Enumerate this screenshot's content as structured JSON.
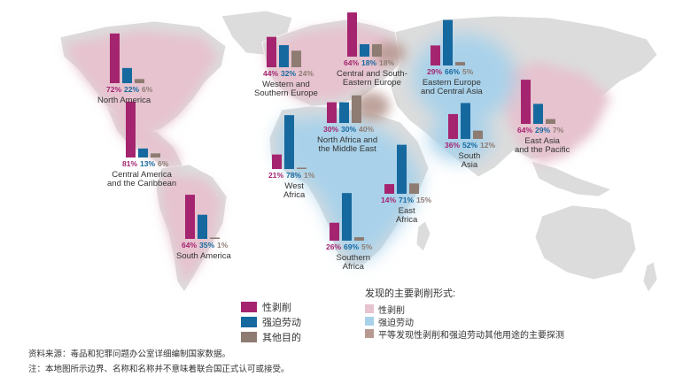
{
  "legend_bars": {
    "items": [
      {
        "label": "性剥削",
        "color": "#a5246f"
      },
      {
        "label": "强迫劳动",
        "color": "#16699f"
      },
      {
        "label": "其他目的",
        "color": "#8e7b72"
      }
    ]
  },
  "legend_regions": {
    "title": "发现的主要剥削形式:",
    "items": [
      {
        "label": "性剥削",
        "color": "#e6c3cf"
      },
      {
        "label": "强迫劳动",
        "color": "#a9d2ea"
      },
      {
        "label": "平等发现性剥削和强迫劳动其他用途的主要探测",
        "color": "#b79a92"
      }
    ]
  },
  "notes": {
    "source": "资料来源：毒品和犯罪问题办公室详细编制国家数据。",
    "disclaimer": "注：本地图所示边界、名称和名称并不意味着联合国正式认可或接受。"
  },
  "regions": [
    {
      "name": "North America",
      "values": [
        72,
        22,
        6
      ],
      "labels": [
        "72%",
        "22%",
        "6%"
      ]
    },
    {
      "name": "Central America and the Caribbean",
      "values": [
        81,
        13,
        6
      ],
      "labels": [
        "81%",
        "13%",
        "6%"
      ]
    },
    {
      "name": "South America",
      "values": [
        64,
        35,
        1
      ],
      "labels": [
        "64%",
        "35%",
        "1%"
      ]
    },
    {
      "name": "Western and Southern Europe",
      "values": [
        44,
        32,
        24
      ],
      "labels": [
        "44%",
        "32%",
        "24%"
      ]
    },
    {
      "name": "Central and South-Eastern Europe",
      "values": [
        64,
        18,
        18
      ],
      "labels": [
        "64%",
        "18%",
        "18%"
      ]
    },
    {
      "name": "Eastern Europe and Central Asia",
      "values": [
        29,
        66,
        5
      ],
      "labels": [
        "29%",
        "66%",
        "5%"
      ]
    },
    {
      "name": "North Africa and the Middle East",
      "values": [
        30,
        30,
        40
      ],
      "labels": [
        "30%",
        "30%",
        "40%"
      ]
    },
    {
      "name": "West Africa",
      "values": [
        21,
        78,
        1
      ],
      "labels": [
        "21%",
        "78%",
        "1%"
      ]
    },
    {
      "name": "East Africa",
      "values": [
        14,
        71,
        15
      ],
      "labels": [
        "14%",
        "71%",
        "15%"
      ]
    },
    {
      "name": "Southern Africa",
      "values": [
        26,
        69,
        5
      ],
      "labels": [
        "26%",
        "69%",
        "5%"
      ]
    },
    {
      "name": "South Asia",
      "values": [
        36,
        52,
        12
      ],
      "labels": [
        "36%",
        "52%",
        "12%"
      ]
    },
    {
      "name": "East Asia and the Pacific",
      "values": [
        64,
        29,
        7
      ],
      "labels": [
        "64%",
        "29%",
        "7%"
      ]
    }
  ],
  "colors": {
    "sexual": "#a5246f",
    "forced": "#16699f",
    "other": "#8e7b72",
    "land": "#dcdcdc",
    "zone_sexual": "#e6c3cf",
    "zone_forced": "#a9d2ea",
    "zone_other": "#b79a92"
  }
}
